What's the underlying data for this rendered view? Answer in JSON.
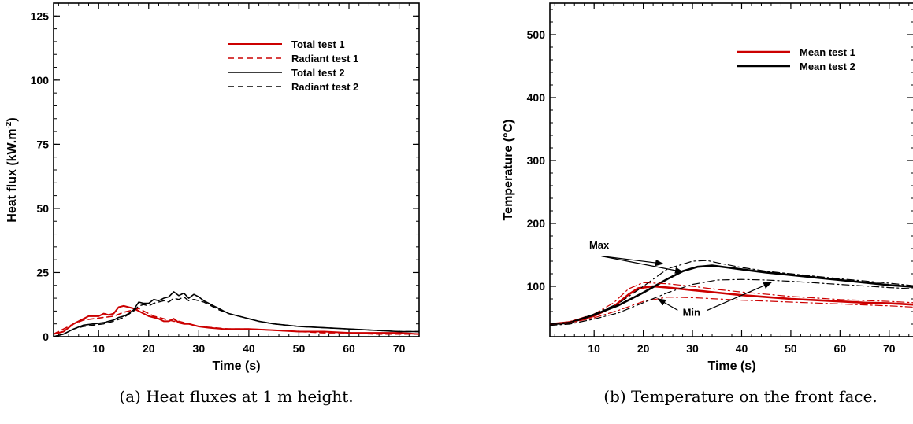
{
  "chart_data": [
    {
      "type": "line",
      "caption": "(a) Heat fluxes at 1 m height.",
      "title": "",
      "xlabel": "Time  (s)",
      "ylabel": "Heat  flux  (kW.m",
      "ylabel_sup": "-2",
      "ylabel_end": ")",
      "xlim": [
        1,
        74
      ],
      "ylim": [
        0,
        130
      ],
      "xticks": [
        10,
        20,
        30,
        40,
        50,
        60,
        70
      ],
      "yticks": [
        0,
        25,
        50,
        75,
        100,
        125
      ],
      "grid": false,
      "legend_position": "top-right",
      "series": [
        {
          "name": "Total  test  1",
          "color": "#cc0000",
          "style": "solid",
          "width": 2,
          "x": [
            1,
            3,
            5,
            7,
            8,
            9,
            10,
            11,
            12,
            13,
            14,
            15,
            16,
            17,
            18,
            19,
            20,
            21,
            22,
            23,
            24,
            25,
            26,
            27,
            28,
            30,
            32,
            35,
            40,
            45,
            50,
            55,
            60,
            65,
            70,
            74
          ],
          "y": [
            1,
            2,
            5,
            7,
            8,
            8,
            8,
            9,
            8.5,
            9,
            11.5,
            12,
            11.5,
            11,
            10,
            9,
            8,
            7.5,
            7,
            6,
            6,
            7,
            5.5,
            5,
            5,
            4,
            3.5,
            3,
            3,
            2.5,
            2,
            2,
            1.5,
            1.5,
            1.5,
            1
          ]
        },
        {
          "name": "Radiant  test  1",
          "color": "#cc0000",
          "style": "dash",
          "width": 1.6,
          "x": [
            1,
            3,
            5,
            7,
            9,
            11,
            13,
            15,
            17,
            18,
            19,
            20,
            21,
            22,
            23,
            24,
            25,
            26,
            28,
            30,
            33,
            36,
            40,
            45,
            50,
            55,
            60,
            65,
            70,
            74
          ],
          "y": [
            1,
            3,
            5,
            6.5,
            7,
            7.5,
            8,
            9.5,
            10.5,
            11,
            10,
            9,
            8,
            7.5,
            7,
            6.5,
            6,
            6,
            5,
            4,
            3.5,
            3,
            3,
            2.5,
            2,
            1.5,
            1.5,
            1,
            1,
            1
          ]
        },
        {
          "name": "Total  test  2",
          "color": "#000000",
          "style": "solid",
          "width": 1.6,
          "x": [
            1,
            3,
            5,
            7,
            9,
            11,
            12,
            13,
            14,
            15,
            16,
            17,
            18,
            19,
            20,
            21,
            22,
            23,
            24,
            25,
            26,
            27,
            28,
            29,
            30,
            31,
            32,
            33,
            34,
            35,
            36,
            38,
            40,
            42,
            45,
            50,
            55,
            60,
            65,
            70,
            74
          ],
          "y": [
            0,
            1,
            3,
            4.5,
            5,
            5.5,
            6,
            6.5,
            7.5,
            8,
            9,
            10.5,
            13.5,
            13,
            13,
            14.5,
            14,
            15,
            15.5,
            17.5,
            16,
            17,
            15,
            16.5,
            15.5,
            14,
            13,
            12,
            11,
            10,
            9,
            8,
            7,
            6,
            5,
            4,
            3.5,
            3,
            2.5,
            2,
            2
          ]
        },
        {
          "name": "Radiant  test  2",
          "color": "#000000",
          "style": "dash",
          "width": 1.4,
          "x": [
            1,
            3,
            5,
            7,
            9,
            11,
            13,
            15,
            17,
            18,
            19,
            20,
            21,
            22,
            23,
            24,
            25,
            26,
            27,
            28,
            29,
            30,
            31,
            32,
            34,
            36,
            38,
            40,
            42,
            45,
            50,
            55,
            60,
            65,
            70,
            74
          ],
          "y": [
            0,
            1,
            3,
            4,
            4.5,
            5,
            6,
            7.5,
            10,
            12,
            12.5,
            12,
            13,
            13.5,
            14,
            13.5,
            15,
            14.5,
            15.5,
            14,
            14.5,
            14,
            13.5,
            12.5,
            10.5,
            9,
            8,
            7,
            6,
            5,
            4,
            3.5,
            3,
            2.5,
            2,
            2
          ]
        }
      ]
    },
    {
      "type": "line",
      "caption": "(b) Temperature on the front face.",
      "title": "",
      "xlabel": "Time  (s)",
      "ylabel": "Temperature  (°C)",
      "xlim": [
        1,
        75
      ],
      "ylim": [
        20,
        550
      ],
      "xticks": [
        10,
        20,
        30,
        40,
        50,
        60,
        70
      ],
      "yticks": [
        100,
        200,
        300,
        400,
        500
      ],
      "grid": false,
      "legend_position": "top-right",
      "annotations": [
        {
          "text": "Max",
          "x": 9,
          "y": 160
        },
        {
          "text": "Min",
          "x": 28,
          "y": 53
        }
      ],
      "series": [
        {
          "name": "Mean  test  1",
          "color": "#cc0000",
          "style": "solid",
          "width": 2.6,
          "x": [
            1,
            5,
            10,
            14,
            17,
            19,
            22,
            25,
            30,
            35,
            40,
            45,
            50,
            55,
            60,
            65,
            70,
            75
          ],
          "y": [
            40,
            43,
            53,
            68,
            87,
            97,
            100,
            98,
            94,
            90,
            86,
            83,
            80,
            78,
            76,
            74,
            73,
            71
          ]
        },
        {
          "name": "Mean  test  2",
          "color": "#000000",
          "style": "solid",
          "width": 2.6,
          "x": [
            1,
            5,
            10,
            15,
            20,
            25,
            28,
            31,
            34,
            37,
            40,
            45,
            50,
            55,
            60,
            65,
            70,
            75
          ],
          "y": [
            40,
            42,
            55,
            70,
            90,
            112,
            124,
            131,
            133,
            130,
            127,
            122,
            118,
            114,
            110,
            106,
            102,
            99
          ]
        },
        {
          "name": "",
          "color": "#cc0000",
          "style": "dashdot",
          "width": 1.2,
          "x": [
            1,
            5,
            10,
            14,
            17,
            20,
            25,
            30,
            35,
            40,
            50,
            60,
            70,
            75
          ],
          "y": [
            40,
            44,
            56,
            74,
            96,
            106,
            104,
            100,
            95,
            91,
            84,
            79,
            76,
            74
          ]
        },
        {
          "name": "",
          "color": "#cc0000",
          "style": "dashdot",
          "width": 1.2,
          "x": [
            1,
            5,
            10,
            15,
            20,
            25,
            30,
            35,
            40,
            50,
            60,
            70,
            75
          ],
          "y": [
            40,
            42,
            50,
            62,
            76,
            83,
            82,
            80,
            78,
            75,
            72,
            69,
            67
          ]
        },
        {
          "name": "",
          "color": "#000000",
          "style": "dashdot",
          "width": 1.2,
          "x": [
            1,
            5,
            10,
            15,
            20,
            25,
            30,
            33,
            36,
            40,
            45,
            50,
            60,
            70,
            75
          ],
          "y": [
            40,
            43,
            56,
            73,
            100,
            128,
            140,
            141,
            136,
            130,
            124,
            120,
            112,
            105,
            101
          ]
        },
        {
          "name": "",
          "color": "#000000",
          "style": "dashdot",
          "width": 1.2,
          "x": [
            1,
            5,
            10,
            15,
            20,
            25,
            30,
            35,
            40,
            45,
            50,
            60,
            70,
            75
          ],
          "y": [
            38,
            40,
            48,
            58,
            74,
            90,
            103,
            110,
            111,
            110,
            108,
            103,
            98,
            96
          ]
        }
      ]
    }
  ]
}
